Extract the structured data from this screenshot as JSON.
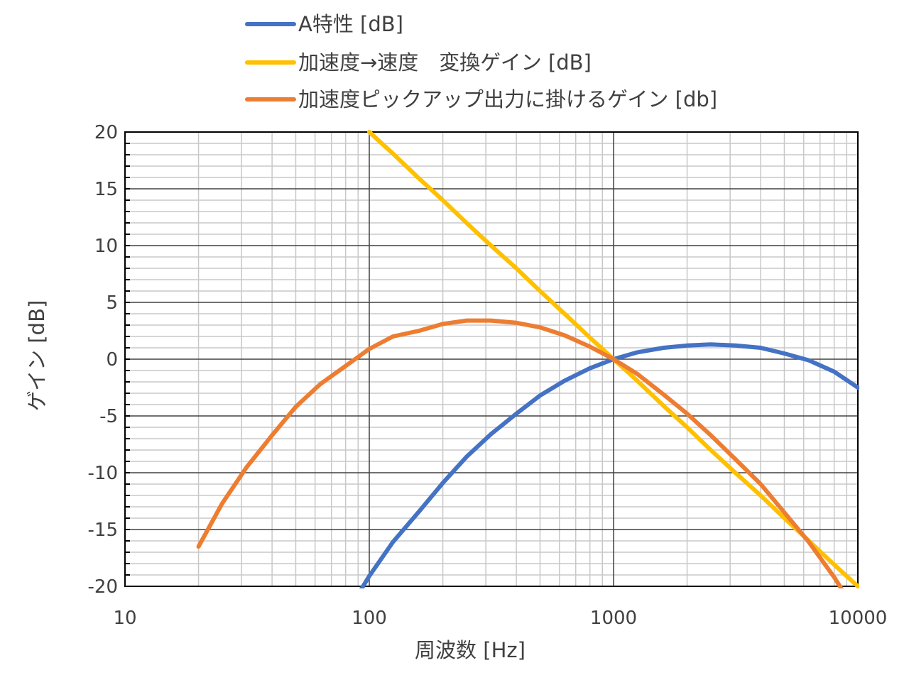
{
  "chart_data": {
    "type": "line",
    "xscale": "log",
    "xlim": [
      10,
      10000
    ],
    "ylim": [
      -20,
      20
    ],
    "xlabel": "周波数 [Hz]",
    "ylabel": "ゲイン [dB]",
    "xticks": [
      "10",
      "100",
      "1000",
      "10000"
    ],
    "yticks": [
      "20",
      "15",
      "10",
      "5",
      "0",
      "-5",
      "-10",
      "-15",
      "-20"
    ],
    "grid": true,
    "legend_position": "top",
    "series": [
      {
        "name": "A特性 [dB]",
        "color": "#4472C4",
        "x": [
          80,
          100,
          125,
          160,
          200,
          250,
          315,
          400,
          500,
          630,
          800,
          1000,
          1250,
          1600,
          2000,
          2500,
          3150,
          4000,
          5000,
          6300,
          8000,
          10000
        ],
        "y": [
          -22.5,
          -19.1,
          -16.1,
          -13.4,
          -10.9,
          -8.6,
          -6.6,
          -4.8,
          -3.2,
          -1.9,
          -0.8,
          0.0,
          0.6,
          1.0,
          1.2,
          1.3,
          1.2,
          1.0,
          0.5,
          -0.1,
          -1.1,
          -2.5
        ]
      },
      {
        "name": "加速度→速度　変換ゲイン [dB]",
        "color": "#FFC000",
        "x": [
          100,
          125,
          160,
          200,
          250,
          315,
          400,
          500,
          630,
          800,
          1000,
          1250,
          1600,
          2000,
          2500,
          3150,
          4000,
          5000,
          6300,
          8000,
          10000
        ],
        "y": [
          20,
          18.1,
          15.9,
          14,
          12,
          10,
          8,
          6,
          4,
          1.9,
          0,
          -1.9,
          -4.1,
          -6,
          -8,
          -10,
          -12,
          -14,
          -16,
          -18.1,
          -20
        ]
      },
      {
        "name": "加速度ピックアップ出力に掛けるゲイン [db]",
        "color": "#ED7D31",
        "x": [
          20,
          25,
          31.5,
          40,
          50,
          63,
          80,
          100,
          125,
          160,
          200,
          250,
          315,
          400,
          500,
          630,
          800,
          1000,
          1250,
          1600,
          2000,
          2500,
          3150,
          4000,
          5000,
          6300,
          8000,
          10000
        ],
        "y": [
          -16.5,
          -12.7,
          -9.5,
          -6.7,
          -4.2,
          -2.2,
          -0.6,
          0.9,
          2.0,
          2.5,
          3.1,
          3.4,
          3.4,
          3.2,
          2.8,
          2.1,
          1.1,
          0,
          -1.3,
          -3.1,
          -4.8,
          -6.7,
          -8.8,
          -11.0,
          -13.5,
          -16.1,
          -19.2,
          -22.5
        ]
      }
    ]
  }
}
